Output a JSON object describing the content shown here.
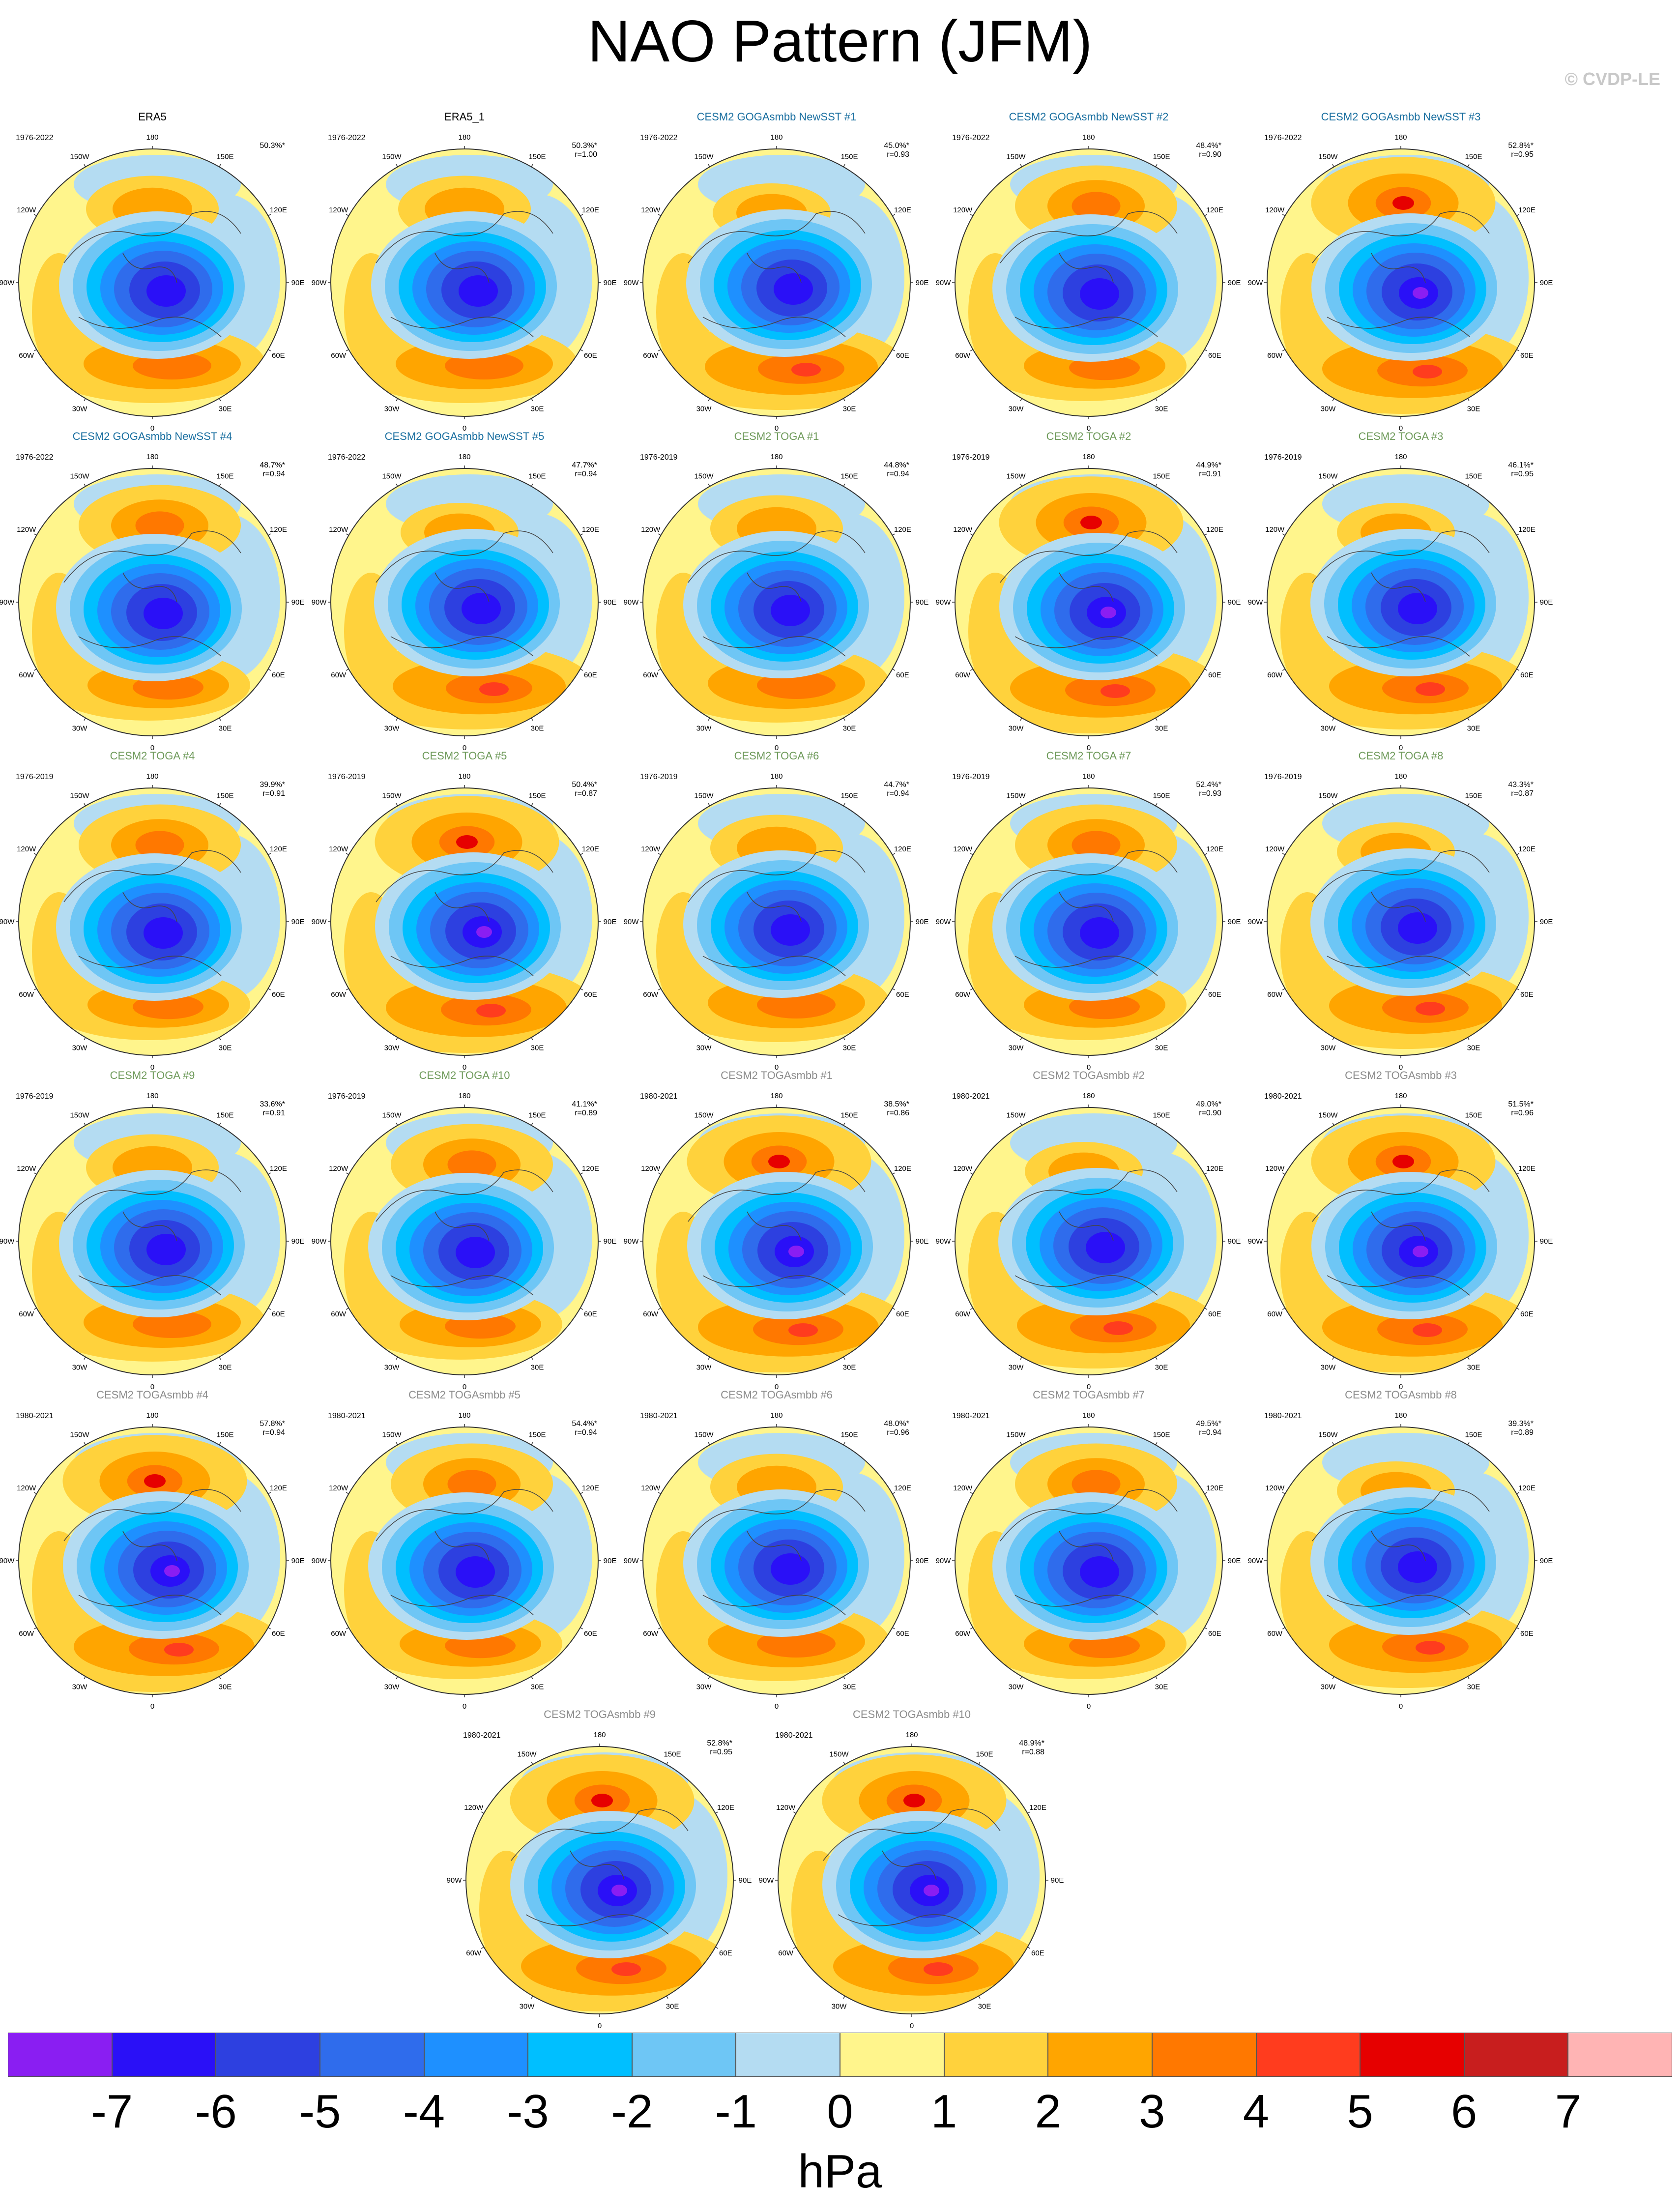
{
  "title": "NAO Pattern (JFM)",
  "credit": "© CVDP-LE",
  "map_labels": {
    "lon_180": "180",
    "lon_150W": "150W",
    "lon_150E": "150E",
    "lon_120W": "120W",
    "lon_120E": "120E",
    "lon_90W": "90W",
    "lon_90E": "90E",
    "lon_60W": "60W",
    "lon_60E": "60E",
    "lon_30W": "30W",
    "lon_30E": "30E",
    "lon_0": "0"
  },
  "panels": [
    {
      "name": "ERA5",
      "years": "1976-2022",
      "pct": "50.3%*",
      "r": "",
      "title_color": "#000000",
      "variant": 0
    },
    {
      "name": "ERA5_1",
      "years": "1976-2022",
      "pct": "50.3%*",
      "r": "r=1.00",
      "title_color": "#000000",
      "variant": 0
    },
    {
      "name": "CESM2 GOGAsmbb NewSST #1",
      "years": "1976-2022",
      "pct": "45.0%*",
      "r": "r=0.93",
      "title_color": "#1a6fa0",
      "variant": 1
    },
    {
      "name": "CESM2 GOGAsmbb NewSST #2",
      "years": "1976-2022",
      "pct": "48.4%*",
      "r": "r=0.90",
      "title_color": "#1a6fa0",
      "variant": 2
    },
    {
      "name": "CESM2 GOGAsmbb NewSST #3",
      "years": "1976-2022",
      "pct": "52.8%*",
      "r": "r=0.95",
      "title_color": "#1a6fa0",
      "variant": 3
    },
    {
      "name": "CESM2 GOGAsmbb NewSST #4",
      "years": "1976-2022",
      "pct": "48.7%*",
      "r": "r=0.94",
      "title_color": "#1a6fa0",
      "variant": 2
    },
    {
      "name": "CESM2 GOGAsmbb NewSST #5",
      "years": "1976-2022",
      "pct": "47.7%*",
      "r": "r=0.94",
      "title_color": "#1a6fa0",
      "variant": 1
    },
    {
      "name": "CESM2 TOGA #1",
      "years": "1976-2019",
      "pct": "44.8%*",
      "r": "r=0.94",
      "title_color": "#6e9a5a",
      "variant": 0
    },
    {
      "name": "CESM2 TOGA #2",
      "years": "1976-2019",
      "pct": "44.9%*",
      "r": "r=0.91",
      "title_color": "#6e9a5a",
      "variant": 3
    },
    {
      "name": "CESM2 TOGA #3",
      "years": "1976-2019",
      "pct": "46.1%*",
      "r": "r=0.95",
      "title_color": "#6e9a5a",
      "variant": 1
    },
    {
      "name": "CESM2 TOGA #4",
      "years": "1976-2019",
      "pct": "39.9%*",
      "r": "r=0.91",
      "title_color": "#6e9a5a",
      "variant": 2
    },
    {
      "name": "CESM2 TOGA #5",
      "years": "1976-2019",
      "pct": "50.4%*",
      "r": "r=0.87",
      "title_color": "#6e9a5a",
      "variant": 3
    },
    {
      "name": "CESM2 TOGA #6",
      "years": "1976-2019",
      "pct": "44.7%*",
      "r": "r=0.94",
      "title_color": "#6e9a5a",
      "variant": 0
    },
    {
      "name": "CESM2 TOGA #7",
      "years": "1976-2019",
      "pct": "52.4%*",
      "r": "r=0.93",
      "title_color": "#6e9a5a",
      "variant": 2
    },
    {
      "name": "CESM2 TOGA #8",
      "years": "1976-2019",
      "pct": "43.3%*",
      "r": "r=0.87",
      "title_color": "#6e9a5a",
      "variant": 1
    },
    {
      "name": "CESM2 TOGA #9",
      "years": "1976-2019",
      "pct": "33.6%*",
      "r": "r=0.91",
      "title_color": "#6e9a5a",
      "variant": 0
    },
    {
      "name": "CESM2 TOGA #10",
      "years": "1976-2019",
      "pct": "41.1%*",
      "r": "r=0.89",
      "title_color": "#6e9a5a",
      "variant": 2
    },
    {
      "name": "CESM2 TOGAsmbb #1",
      "years": "1980-2021",
      "pct": "38.5%*",
      "r": "r=0.86",
      "title_color": "#8c8c8c",
      "variant": 3
    },
    {
      "name": "CESM2 TOGAsmbb #2",
      "years": "1980-2021",
      "pct": "49.0%*",
      "r": "r=0.90",
      "title_color": "#8c8c8c",
      "variant": 1
    },
    {
      "name": "CESM2 TOGAsmbb #3",
      "years": "1980-2021",
      "pct": "51.5%*",
      "r": "r=0.96",
      "title_color": "#8c8c8c",
      "variant": 3
    },
    {
      "name": "CESM2 TOGAsmbb #4",
      "years": "1980-2021",
      "pct": "57.8%*",
      "r": "r=0.94",
      "title_color": "#8c8c8c",
      "variant": 3
    },
    {
      "name": "CESM2 TOGAsmbb #5",
      "years": "1980-2021",
      "pct": "54.4%*",
      "r": "r=0.94",
      "title_color": "#8c8c8c",
      "variant": 2
    },
    {
      "name": "CESM2 TOGAsmbb #6",
      "years": "1980-2021",
      "pct": "48.0%*",
      "r": "r=0.96",
      "title_color": "#8c8c8c",
      "variant": 0
    },
    {
      "name": "CESM2 TOGAsmbb #7",
      "years": "1980-2021",
      "pct": "49.5%*",
      "r": "r=0.94",
      "title_color": "#8c8c8c",
      "variant": 2
    },
    {
      "name": "CESM2 TOGAsmbb #8",
      "years": "1980-2021",
      "pct": "39.3%*",
      "r": "r=0.89",
      "title_color": "#8c8c8c",
      "variant": 1
    },
    {
      "name": "CESM2 TOGAsmbb #9",
      "years": "1980-2021",
      "pct": "52.8%*",
      "r": "r=0.95",
      "title_color": "#8c8c8c",
      "variant": 3
    },
    {
      "name": "CESM2 TOGAsmbb #10",
      "years": "1980-2021",
      "pct": "48.9%*",
      "r": "r=0.88",
      "title_color": "#8c8c8c",
      "variant": 3
    }
  ],
  "colorbar": {
    "colors": [
      "#8a1ef2",
      "#2a10f7",
      "#2d40e0",
      "#2f6cec",
      "#1e90ff",
      "#00bfff",
      "#6ec6f5",
      "#b4dcf2",
      "#fff58c",
      "#ffd23c",
      "#ffa500",
      "#ff7800",
      "#ff3c1e",
      "#e60000",
      "#c81e1e",
      "#ffb4b4"
    ],
    "labels": [
      "-7",
      "-6",
      "-5",
      "-4",
      "-3",
      "-2",
      "-1",
      "0",
      "1",
      "2",
      "3",
      "4",
      "5",
      "6",
      "7"
    ],
    "units": "hPa"
  }
}
